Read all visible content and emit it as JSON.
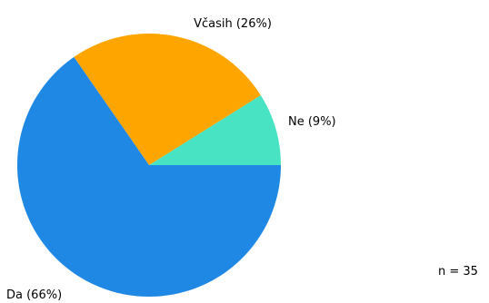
{
  "chart_data": {
    "type": "pie",
    "slices": [
      {
        "label": "Ne (9%)",
        "percent": 9,
        "color": "#48e3c3"
      },
      {
        "label": "Včasih (26%)",
        "percent": 26,
        "color": "#ffa500"
      },
      {
        "label": "Da (66%)",
        "percent": 66,
        "color": "#1f88e5"
      }
    ],
    "start_angle": 0,
    "direction": "counterclockwise",
    "annotation": "n = 35"
  }
}
